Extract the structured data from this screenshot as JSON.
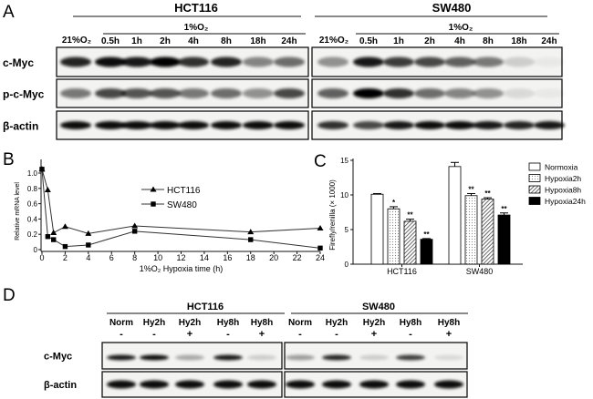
{
  "panels": {
    "a": "A",
    "b": "B",
    "c": "C",
    "d": "D"
  },
  "panel_a": {
    "cell_lines": [
      "HCT116",
      "SW480"
    ],
    "normoxia_label": "21%O₂",
    "hypoxia_label": "1%O₂",
    "time_labels": [
      "0.5h",
      "1h",
      "2h",
      "4h",
      "8h",
      "18h",
      "24h"
    ],
    "rows": [
      "c-Myc",
      "p-c-Myc",
      "β-actin"
    ],
    "band_intensity": {
      "HCT116": [
        [
          0.85,
          0.95,
          0.9,
          1,
          0.8,
          0.85,
          0.45,
          0.55
        ],
        [
          0.5,
          0.7,
          0.65,
          0.65,
          0.5,
          0.55,
          0.4,
          0.7
        ],
        [
          0.95,
          0.95,
          0.95,
          0.95,
          0.95,
          0.95,
          0.95,
          0.95
        ]
      ],
      "SW480": [
        [
          0.4,
          0.9,
          0.75,
          0.7,
          0.6,
          0.5,
          0.15,
          0.04
        ],
        [
          0.6,
          1,
          0.8,
          0.55,
          0.45,
          0.4,
          0.1,
          0.04
        ],
        [
          0.8,
          0.7,
          0.9,
          0.95,
          0.95,
          0.9,
          0.85,
          0.9
        ]
      ]
    }
  },
  "chart_data": [
    {
      "type": "line",
      "xlabel": "1%O₂ Hypoxia time (h)",
      "ylabel": "Relative mRNA level",
      "xlim": [
        0,
        24
      ],
      "ylim": [
        0,
        1.0
      ],
      "xticks": [
        "0",
        "2",
        "4",
        "6",
        "8",
        "10",
        "12",
        "14",
        "16",
        "18",
        "20",
        "22",
        "24"
      ],
      "yticks": [
        "0",
        "0.2",
        "0.4",
        "0.6",
        "0.8",
        "1.0"
      ],
      "x": [
        0,
        0.5,
        1,
        2,
        4,
        8,
        18,
        24
      ],
      "series": [
        {
          "name": "HCT116",
          "marker": "triangle",
          "values": [
            1.05,
            0.78,
            0.22,
            0.3,
            0.21,
            0.31,
            0.23,
            0.28
          ]
        },
        {
          "name": "SW480",
          "marker": "square",
          "values": [
            1.05,
            0.17,
            0.13,
            0.04,
            0.06,
            0.24,
            0.13,
            0.02
          ]
        }
      ],
      "legend": "center-right",
      "grid": false
    },
    {
      "type": "bar",
      "ylabel": "Firefly/renilla (× 1000)",
      "ylim": [
        0,
        15
      ],
      "yticks": [
        "0",
        "5",
        "10",
        "15"
      ],
      "categories": [
        "HCT116",
        "SW480"
      ],
      "series": [
        {
          "name": "Normoxia",
          "fill": "white",
          "values": [
            10.1,
            14.1
          ],
          "errors": [
            0.1,
            0.6
          ],
          "sig": [
            "",
            ""
          ]
        },
        {
          "name": "Hypoxia2h",
          "fill": "dotted",
          "values": [
            8.0,
            9.9
          ],
          "errors": [
            0.3,
            0.3
          ],
          "sig": [
            "*",
            "**"
          ]
        },
        {
          "name": "Hypoxia8h",
          "fill": "hatched",
          "values": [
            6.2,
            9.4
          ],
          "errors": [
            0.3,
            0.2
          ],
          "sig": [
            "**",
            "**"
          ]
        },
        {
          "name": "Hypoxia24h",
          "fill": "black",
          "values": [
            3.6,
            7.1
          ],
          "errors": [
            0.1,
            0.3
          ],
          "sig": [
            "**",
            "**"
          ]
        }
      ],
      "legend": "top-right",
      "grid": false
    }
  ],
  "panel_d": {
    "cell_lines": [
      "HCT116",
      "SW480"
    ],
    "lanes": [
      "Norm",
      "Hy2h",
      "Hy2h",
      "Hy8h",
      "Hy8h"
    ],
    "signs": [
      "-",
      "-",
      "+",
      "-",
      "+"
    ],
    "rows": [
      "c-Myc",
      "β-actin"
    ],
    "band_intensity": {
      "HCT116": [
        [
          0.9,
          0.95,
          0.3,
          0.9,
          0.15
        ],
        [
          0.95,
          0.95,
          0.95,
          0.95,
          0.95
        ]
      ],
      "SW480": [
        [
          0.35,
          0.85,
          0.15,
          0.75,
          0.1
        ],
        [
          0.95,
          0.95,
          0.95,
          0.95,
          0.95
        ]
      ]
    }
  }
}
